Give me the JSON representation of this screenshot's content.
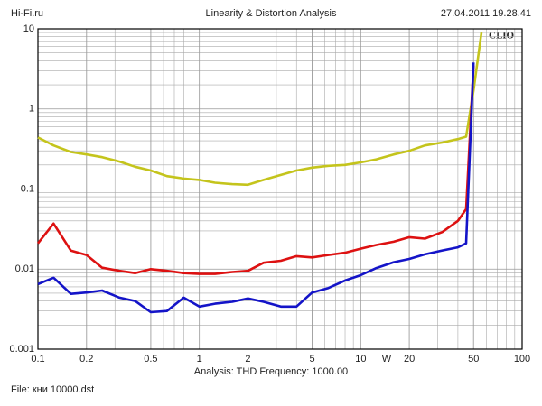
{
  "chart_data": {
    "type": "line",
    "source": "Hi-Fi.ru",
    "title": "Linearity & Distortion Analysis",
    "timestamp": "27.04.2011 19.28.41",
    "brand": "CLIO",
    "analysis": "Analysis: THD  Frequency: 1000.00",
    "file": "File: кни 10000.dst",
    "x_label": "W",
    "xscale": "log",
    "yscale": "log",
    "grid": true,
    "minor_grid": true,
    "xlim": [
      0.1,
      100
    ],
    "ylim": [
      0.001,
      10
    ],
    "xticks": [
      0.1,
      0.2,
      0.5,
      1,
      2,
      5,
      10,
      20,
      50,
      100
    ],
    "yticks": [
      0.001,
      0.01,
      0.1,
      1,
      10
    ],
    "x": [
      0.1,
      0.125,
      0.16,
      0.2,
      0.25,
      0.32,
      0.4,
      0.5,
      0.63,
      0.8,
      1,
      1.25,
      1.6,
      2,
      2.5,
      3.2,
      4,
      5,
      6.3,
      8,
      10,
      12.5,
      16,
      20,
      25,
      32,
      40,
      45,
      50,
      56
    ],
    "series": [
      {
        "color": "#c4c41c",
        "values": [
          0.44,
          0.35,
          0.29,
          0.27,
          0.25,
          0.22,
          0.19,
          0.17,
          0.145,
          0.135,
          0.13,
          0.12,
          0.115,
          0.113,
          0.13,
          0.15,
          0.17,
          0.185,
          0.195,
          0.2,
          0.215,
          0.235,
          0.27,
          0.3,
          0.35,
          0.38,
          0.42,
          0.45,
          1.7,
          9
        ]
      },
      {
        "color": "#dd1111",
        "values": [
          0.021,
          0.037,
          0.017,
          0.015,
          0.0104,
          0.0095,
          0.0089,
          0.01,
          0.0095,
          0.0089,
          0.0087,
          0.0087,
          0.0092,
          0.0095,
          0.012,
          0.0127,
          0.0145,
          0.014,
          0.015,
          0.016,
          0.018,
          0.02,
          0.022,
          0.025,
          0.024,
          0.029,
          0.04,
          0.056,
          3.5,
          null
        ]
      },
      {
        "color": "#1414c8",
        "values": [
          0.0065,
          0.0078,
          0.0049,
          0.0051,
          0.0054,
          0.0044,
          0.004,
          0.0029,
          0.003,
          0.0044,
          0.0034,
          0.0037,
          0.0039,
          0.0043,
          0.0039,
          0.0034,
          0.0034,
          0.0051,
          0.0058,
          0.0072,
          0.0084,
          0.0103,
          0.0122,
          0.0134,
          0.0153,
          0.0171,
          0.0187,
          0.021,
          3.8,
          null
        ]
      }
    ]
  }
}
